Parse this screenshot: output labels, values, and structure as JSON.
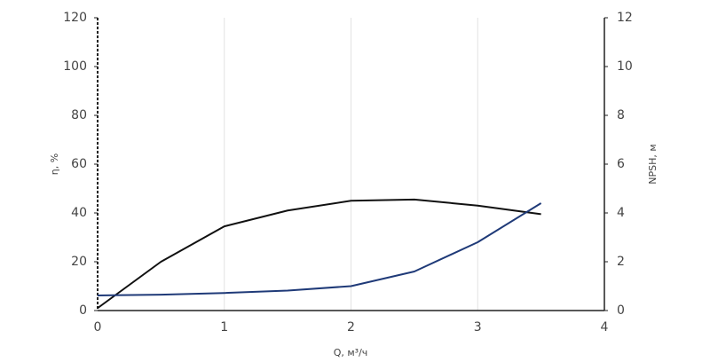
{
  "chart_data": {
    "type": "line",
    "x_label": "Q, м³/ч",
    "y_label": "η, %",
    "y2_label": "NPSH, м",
    "x": [
      0,
      0.5,
      1,
      1.5,
      2,
      2.5,
      3,
      3.5
    ],
    "series": [
      {
        "name": "η",
        "color": "#111111",
        "values": [
          1,
          20,
          34.5,
          41,
          45,
          45.5,
          43,
          39.5
        ]
      },
      {
        "name": "NPSH",
        "color": "#1f3a78",
        "axis": "y2",
        "values": [
          0.62,
          0.65,
          0.72,
          0.82,
          1.0,
          1.6,
          2.8,
          4.4
        ]
      }
    ],
    "xlim": [
      0,
      4
    ],
    "xticks": [
      0,
      1,
      2,
      3,
      4
    ],
    "ylim": [
      0,
      120
    ],
    "yticks": [
      0,
      20,
      40,
      60,
      80,
      100,
      120
    ],
    "y2lim": [
      0,
      12
    ],
    "y2ticks": [
      0,
      2,
      4,
      6,
      8,
      10,
      12
    ],
    "grid": true
  }
}
